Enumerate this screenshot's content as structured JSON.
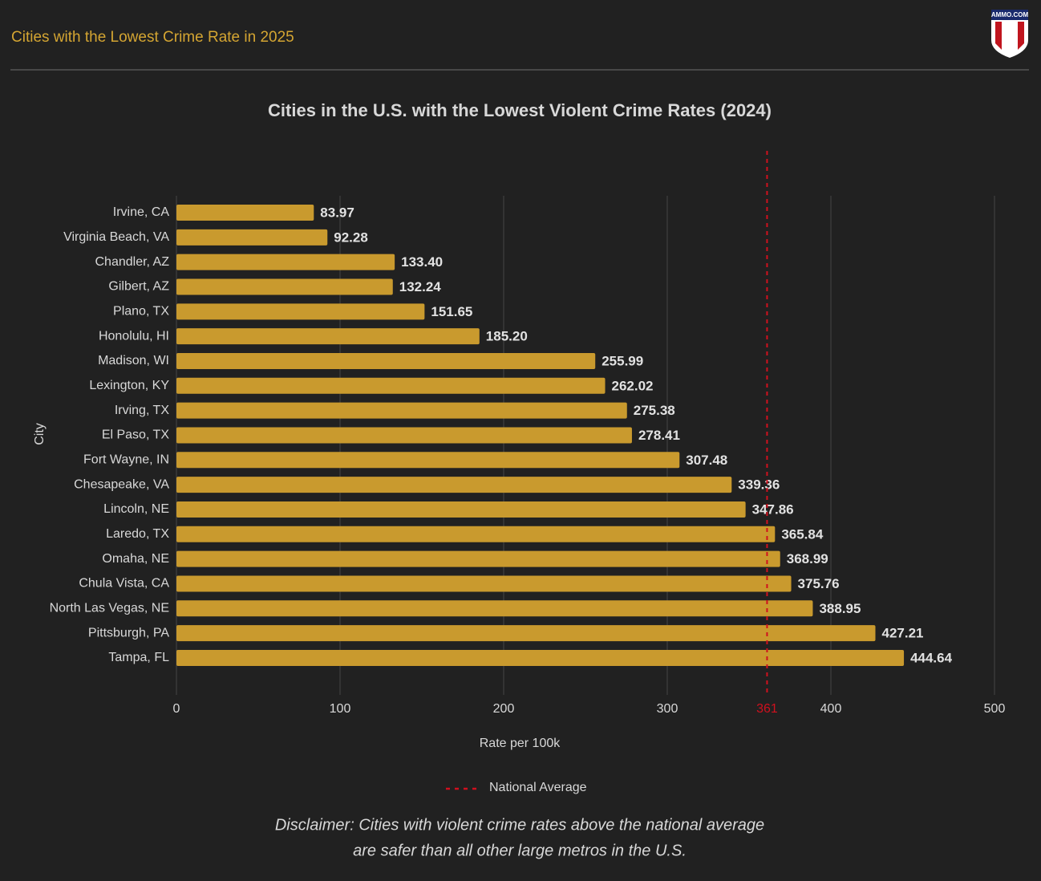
{
  "header": {
    "title": "Cities with the Lowest Crime Rate in 2025",
    "logo": "AMMO.COM"
  },
  "chart_data": {
    "type": "hbar",
    "title": "Cities in the U.S. with the Lowest Violent Crime Rates (2024)",
    "x_label": "Rate per 100k",
    "y_label": "City",
    "categories": [
      "Irvine, CA",
      "Virginia Beach, VA",
      "Chandler, AZ",
      "Gilbert, AZ",
      "Plano, TX",
      "Honolulu, HI",
      "Madison, WI",
      "Lexington, KY",
      "Irving, TX",
      "El Paso, TX",
      "Fort Wayne, IN",
      "Chesapeake, VA",
      "Lincoln, NE",
      "Laredo, TX",
      "Omaha, NE",
      "Chula Vista, CA",
      "North Las Vegas, NE",
      "Pittsburgh, PA",
      "Tampa, FL"
    ],
    "values": [
      83.97,
      92.28,
      133.4,
      132.24,
      151.65,
      185.2,
      255.99,
      262.02,
      275.38,
      278.41,
      307.48,
      339.36,
      347.86,
      365.84,
      368.99,
      375.76,
      388.95,
      427.21,
      444.64
    ],
    "value_labels": [
      "83.97",
      "92.28",
      "133.40",
      "132.24",
      "151.65",
      "185.20",
      "255.99",
      "262.02",
      "275.38",
      "278.41",
      "307.48",
      "339.36",
      "347.86",
      "365.84",
      "368.99",
      "375.76",
      "388.95",
      "427.21",
      "444.64"
    ],
    "color": "#c99a2e",
    "xlim": [
      0,
      500
    ],
    "xticks": [
      0,
      100,
      200,
      300,
      400,
      500
    ],
    "grid": true,
    "reference_line": {
      "name": "National Average",
      "value": 361,
      "color": "#d0101e"
    }
  },
  "disclaimer": [
    "Disclaimer: Cities with violent crime rates above the national average",
    "are safer than all other large metros in the U.S."
  ]
}
